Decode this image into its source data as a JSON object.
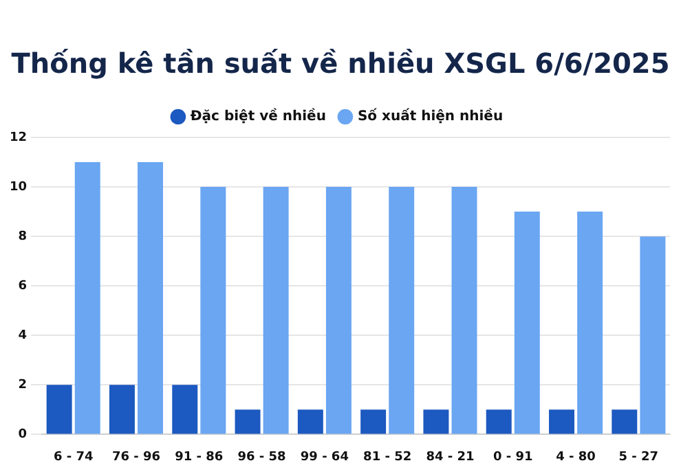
{
  "chart_data": {
    "type": "bar",
    "title": "Thống kê tần suất về nhiều XSGL 6/6/2025",
    "categories": [
      "6 - 74",
      "76 - 96",
      "91 - 86",
      "96 - 58",
      "99 - 64",
      "81 - 52",
      "84 - 21",
      "0 - 91",
      "4 - 80",
      "5 - 27"
    ],
    "series": [
      {
        "name": "Đặc biệt về nhiều",
        "color": "#1c59c0",
        "values": [
          2,
          2,
          2,
          1,
          1,
          1,
          1,
          1,
          1,
          1
        ]
      },
      {
        "name": "Số xuất hiện nhiều",
        "color": "#6aa6f2",
        "values": [
          11,
          11,
          10,
          10,
          10,
          10,
          10,
          9,
          9,
          8
        ]
      }
    ],
    "ylim": [
      0,
      12
    ],
    "yticks": [
      0,
      2,
      4,
      6,
      8,
      10,
      12
    ],
    "grid": "y",
    "legend": "top"
  }
}
